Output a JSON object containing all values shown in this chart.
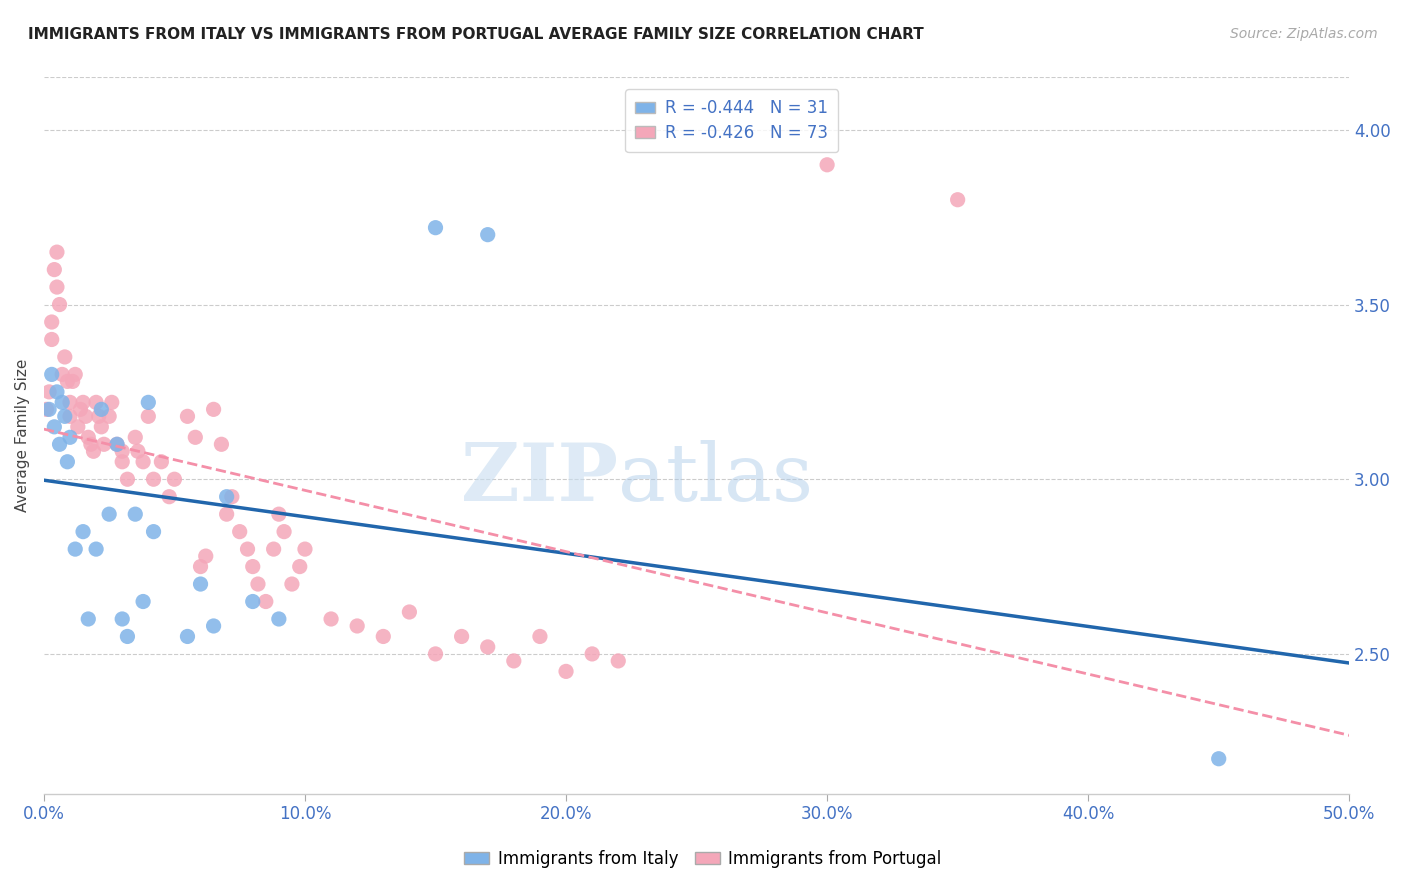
{
  "title": "IMMIGRANTS FROM ITALY VS IMMIGRANTS FROM PORTUGAL AVERAGE FAMILY SIZE CORRELATION CHART",
  "source": "Source: ZipAtlas.com",
  "xlabel": "",
  "ylabel": "Average Family Size",
  "xlim": [
    0.0,
    0.5
  ],
  "ylim": [
    2.1,
    4.15
  ],
  "yticks": [
    2.5,
    3.0,
    3.5,
    4.0
  ],
  "xticks": [
    0.0,
    0.1,
    0.2,
    0.3,
    0.4,
    0.5
  ],
  "xticklabels": [
    "0.0%",
    "10.0%",
    "20.0%",
    "30.0%",
    "40.0%",
    "50.0%"
  ],
  "legend_italy_R": "-0.444",
  "legend_italy_N": "31",
  "legend_portugal_R": "-0.426",
  "legend_portugal_N": "73",
  "italy_color": "#7fb3e8",
  "portugal_color": "#f4a7b9",
  "italy_line_color": "#2166ac",
  "portugal_line_color": "#f48fa8",
  "watermark_zip": "ZIP",
  "watermark_atlas": "atlas",
  "italy_points_x": [
    0.002,
    0.003,
    0.004,
    0.005,
    0.006,
    0.007,
    0.008,
    0.009,
    0.01,
    0.012,
    0.015,
    0.017,
    0.02,
    0.022,
    0.025,
    0.028,
    0.03,
    0.032,
    0.035,
    0.038,
    0.04,
    0.042,
    0.055,
    0.06,
    0.065,
    0.07,
    0.08,
    0.09,
    0.15,
    0.17,
    0.45
  ],
  "italy_points_y": [
    3.2,
    3.3,
    3.15,
    3.25,
    3.1,
    3.22,
    3.18,
    3.05,
    3.12,
    2.8,
    2.85,
    2.6,
    2.8,
    3.2,
    2.9,
    3.1,
    2.6,
    2.55,
    2.9,
    2.65,
    3.22,
    2.85,
    2.55,
    2.7,
    2.58,
    2.95,
    2.65,
    2.6,
    3.72,
    3.7,
    2.2
  ],
  "portugal_points_x": [
    0.001,
    0.002,
    0.003,
    0.003,
    0.004,
    0.005,
    0.005,
    0.006,
    0.007,
    0.008,
    0.009,
    0.01,
    0.01,
    0.011,
    0.012,
    0.013,
    0.014,
    0.015,
    0.016,
    0.017,
    0.018,
    0.019,
    0.02,
    0.021,
    0.022,
    0.023,
    0.025,
    0.026,
    0.028,
    0.03,
    0.03,
    0.032,
    0.035,
    0.036,
    0.038,
    0.04,
    0.042,
    0.045,
    0.048,
    0.05,
    0.055,
    0.058,
    0.06,
    0.062,
    0.065,
    0.068,
    0.07,
    0.072,
    0.075,
    0.078,
    0.08,
    0.082,
    0.085,
    0.088,
    0.09,
    0.092,
    0.095,
    0.098,
    0.1,
    0.11,
    0.12,
    0.13,
    0.14,
    0.15,
    0.16,
    0.17,
    0.18,
    0.19,
    0.2,
    0.21,
    0.22,
    0.3,
    0.35
  ],
  "portugal_points_y": [
    3.2,
    3.25,
    3.4,
    3.45,
    3.6,
    3.65,
    3.55,
    3.5,
    3.3,
    3.35,
    3.28,
    3.22,
    3.18,
    3.28,
    3.3,
    3.15,
    3.2,
    3.22,
    3.18,
    3.12,
    3.1,
    3.08,
    3.22,
    3.18,
    3.15,
    3.1,
    3.18,
    3.22,
    3.1,
    3.05,
    3.08,
    3.0,
    3.12,
    3.08,
    3.05,
    3.18,
    3.0,
    3.05,
    2.95,
    3.0,
    3.18,
    3.12,
    2.75,
    2.78,
    3.2,
    3.1,
    2.9,
    2.95,
    2.85,
    2.8,
    2.75,
    2.7,
    2.65,
    2.8,
    2.9,
    2.85,
    2.7,
    2.75,
    2.8,
    2.6,
    2.58,
    2.55,
    2.62,
    2.5,
    2.55,
    2.52,
    2.48,
    2.55,
    2.45,
    2.5,
    2.48,
    3.9,
    3.8
  ]
}
